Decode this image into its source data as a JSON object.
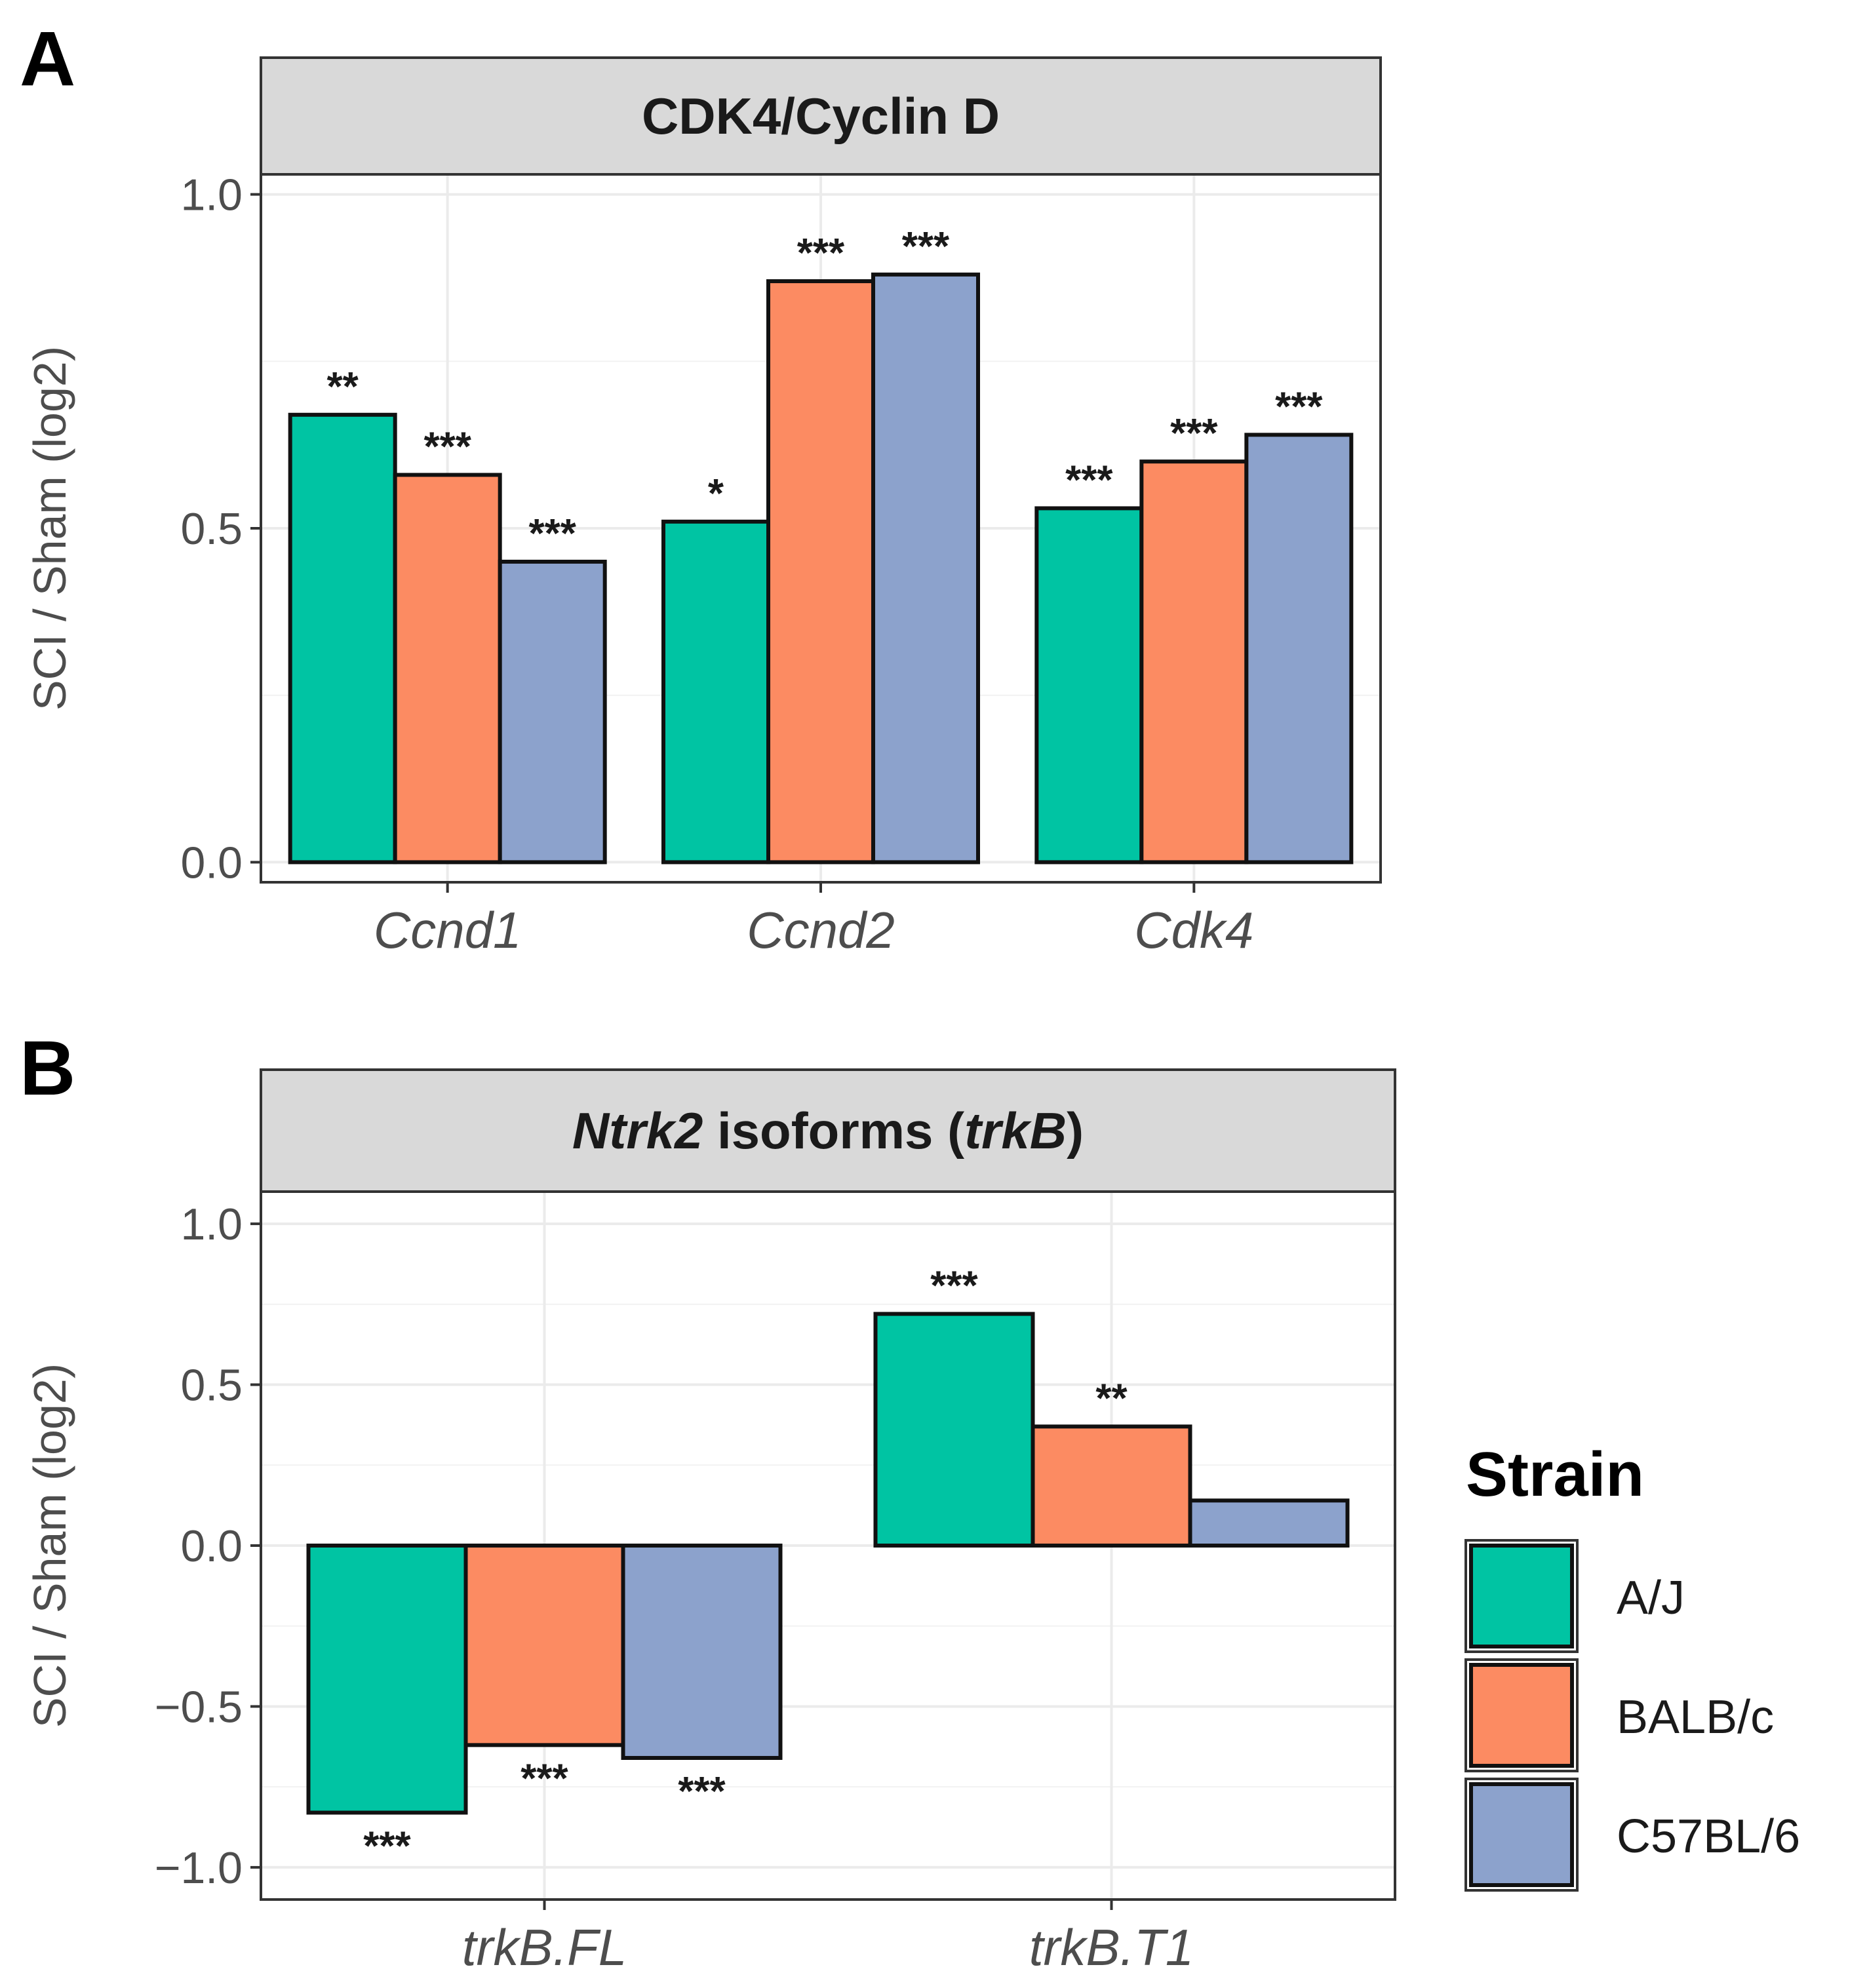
{
  "colors": {
    "A/J": "#00c4a3",
    "BALB/c": "#fc8b62",
    "C57BL/6": "#8ca2cc",
    "strip_bg": "#d9d9d9",
    "grid": "#ebebeb",
    "border": "#333333"
  },
  "legend": {
    "title": "Strain",
    "items": [
      {
        "label": "A/J",
        "color": "#00c4a3"
      },
      {
        "label": "BALB/c",
        "color": "#fc8b62"
      },
      {
        "label": "C57BL/6",
        "color": "#8ca2cc"
      }
    ]
  },
  "chart_data": [
    {
      "type": "bar",
      "panel": "A",
      "title": "CDK4/Cyclin D",
      "ylabel": "SCI / Sham (log2)",
      "xlabel": "",
      "ylim": [
        -0.03,
        1.03
      ],
      "yticks": [
        0.0,
        0.5,
        1.0
      ],
      "ytick_labels": [
        "0.0",
        "0.5",
        "1.0"
      ],
      "categories": [
        "Ccnd1",
        "Ccnd2",
        "Cdk4"
      ],
      "series": [
        {
          "name": "A/J",
          "values": [
            0.67,
            0.51,
            0.53
          ],
          "significance": [
            "**",
            "*",
            "***"
          ]
        },
        {
          "name": "BALB/c",
          "values": [
            0.58,
            0.87,
            0.6
          ],
          "significance": [
            "***",
            "***",
            "***"
          ]
        },
        {
          "name": "C57BL/6",
          "values": [
            0.45,
            0.88,
            0.64
          ],
          "significance": [
            "***",
            "***",
            "***"
          ]
        }
      ]
    },
    {
      "type": "bar",
      "panel": "B",
      "title_parts": [
        {
          "text": "Ntrk2",
          "italic": true
        },
        {
          "text": " isoforms (",
          "italic": false
        },
        {
          "text": "trkB",
          "italic": true
        },
        {
          "text": ")",
          "italic": false
        }
      ],
      "ylabel": "SCI / Sham (log2)",
      "xlabel": "",
      "ylim": [
        -1.1,
        1.1
      ],
      "yticks": [
        -1.0,
        -0.5,
        0.0,
        0.5,
        1.0
      ],
      "ytick_labels": [
        "−1.0",
        "−0.5",
        "0.0",
        "0.5",
        "1.0"
      ],
      "categories": [
        "trkB.FL",
        "trkB.T1"
      ],
      "series": [
        {
          "name": "A/J",
          "values": [
            -0.83,
            0.72
          ],
          "significance": [
            "***",
            "***"
          ]
        },
        {
          "name": "BALB/c",
          "values": [
            -0.62,
            0.37
          ],
          "significance": [
            "***",
            "**"
          ]
        },
        {
          "name": "C57BL/6",
          "values": [
            -0.66,
            0.14
          ],
          "significance": [
            "***",
            ""
          ]
        }
      ]
    }
  ]
}
